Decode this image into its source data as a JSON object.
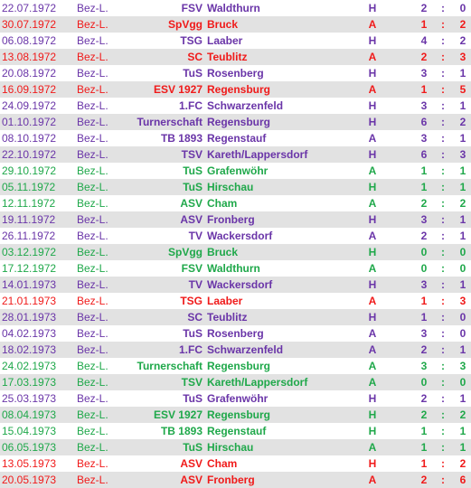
{
  "colors": {
    "draw": "#6a35a8",
    "loss": "#f01a1a",
    "win": "#1fa84a",
    "row_alt": "#e2e2e2"
  },
  "games": [
    {
      "date": "22.07.1972",
      "league": "Bez-L.",
      "club": "FSV",
      "opponent": "Waldthurn",
      "venue": "H",
      "home_goals": "2",
      "separator": ":",
      "away_goals": "0",
      "result": "draw"
    },
    {
      "date": "30.07.1972",
      "league": "Bez-L.",
      "club": "SpVgg",
      "opponent": "Bruck",
      "venue": "A",
      "home_goals": "1",
      "separator": ":",
      "away_goals": "2",
      "result": "loss"
    },
    {
      "date": "06.08.1972",
      "league": "Bez-L.",
      "club": "TSG",
      "opponent": "Laaber",
      "venue": "H",
      "home_goals": "4",
      "separator": ":",
      "away_goals": "2",
      "result": "draw"
    },
    {
      "date": "13.08.1972",
      "league": "Bez-L.",
      "club": "SC",
      "opponent": "Teublitz",
      "venue": "A",
      "home_goals": "2",
      "separator": ":",
      "away_goals": "3",
      "result": "loss"
    },
    {
      "date": "20.08.1972",
      "league": "Bez-L.",
      "club": "TuS",
      "opponent": "Rosenberg",
      "venue": "H",
      "home_goals": "3",
      "separator": ":",
      "away_goals": "1",
      "result": "draw"
    },
    {
      "date": "16.09.1972",
      "league": "Bez-L.",
      "club": "ESV 1927",
      "opponent": "Regensburg",
      "venue": "A",
      "home_goals": "1",
      "separator": ":",
      "away_goals": "5",
      "result": "loss"
    },
    {
      "date": "24.09.1972",
      "league": "Bez-L.",
      "club": "1.FC",
      "opponent": "Schwarzenfeld",
      "venue": "H",
      "home_goals": "3",
      "separator": ":",
      "away_goals": "1",
      "result": "draw"
    },
    {
      "date": "01.10.1972",
      "league": "Bez-L.",
      "club": "Turnerschaft",
      "opponent": "Regensburg",
      "venue": "H",
      "home_goals": "6",
      "separator": ":",
      "away_goals": "2",
      "result": "draw"
    },
    {
      "date": "08.10.1972",
      "league": "Bez-L.",
      "club": "TB 1893",
      "opponent": "Regenstauf",
      "venue": "A",
      "home_goals": "3",
      "separator": ":",
      "away_goals": "1",
      "result": "draw"
    },
    {
      "date": "22.10.1972",
      "league": "Bez-L.",
      "club": "TSV",
      "opponent": "Kareth/Lappersdorf",
      "venue": "H",
      "home_goals": "6",
      "separator": ":",
      "away_goals": "3",
      "result": "draw"
    },
    {
      "date": "29.10.1972",
      "league": "Bez-L.",
      "club": "TuS",
      "opponent": "Grafenwöhr",
      "venue": "A",
      "home_goals": "1",
      "separator": ":",
      "away_goals": "1",
      "result": "win"
    },
    {
      "date": "05.11.1972",
      "league": "Bez-L.",
      "club": "TuS",
      "opponent": "Hirschau",
      "venue": "H",
      "home_goals": "1",
      "separator": ":",
      "away_goals": "1",
      "result": "win"
    },
    {
      "date": "12.11.1972",
      "league": "Bez-L.",
      "club": "ASV",
      "opponent": "Cham",
      "venue": "A",
      "home_goals": "2",
      "separator": ":",
      "away_goals": "2",
      "result": "win"
    },
    {
      "date": "19.11.1972",
      "league": "Bez-L.",
      "club": "ASV",
      "opponent": "Fronberg",
      "venue": "H",
      "home_goals": "3",
      "separator": ":",
      "away_goals": "1",
      "result": "draw"
    },
    {
      "date": "26.11.1972",
      "league": "Bez-L.",
      "club": "TV",
      "opponent": "Wackersdorf",
      "venue": "A",
      "home_goals": "2",
      "separator": ":",
      "away_goals": "1",
      "result": "draw"
    },
    {
      "date": "03.12.1972",
      "league": "Bez-L.",
      "club": "SpVgg",
      "opponent": "Bruck",
      "venue": "H",
      "home_goals": "0",
      "separator": ":",
      "away_goals": "0",
      "result": "win"
    },
    {
      "date": "17.12.1972",
      "league": "Bez-L.",
      "club": "FSV",
      "opponent": "Waldthurn",
      "venue": "A",
      "home_goals": "0",
      "separator": ":",
      "away_goals": "0",
      "result": "win"
    },
    {
      "date": "14.01.1973",
      "league": "Bez-L.",
      "club": "TV",
      "opponent": "Wackersdorf",
      "venue": "H",
      "home_goals": "3",
      "separator": ":",
      "away_goals": "1",
      "result": "draw"
    },
    {
      "date": "21.01.1973",
      "league": "Bez-L.",
      "club": "TSG",
      "opponent": "Laaber",
      "venue": "A",
      "home_goals": "1",
      "separator": ":",
      "away_goals": "3",
      "result": "loss"
    },
    {
      "date": "28.01.1973",
      "league": "Bez-L.",
      "club": "SC",
      "opponent": "Teublitz",
      "venue": "H",
      "home_goals": "1",
      "separator": ":",
      "away_goals": "0",
      "result": "draw"
    },
    {
      "date": "04.02.1973",
      "league": "Bez-L.",
      "club": "TuS",
      "opponent": "Rosenberg",
      "venue": "A",
      "home_goals": "3",
      "separator": ":",
      "away_goals": "0",
      "result": "draw"
    },
    {
      "date": "18.02.1973",
      "league": "Bez-L.",
      "club": "1.FC",
      "opponent": "Schwarzenfeld",
      "venue": "A",
      "home_goals": "2",
      "separator": ":",
      "away_goals": "1",
      "result": "draw"
    },
    {
      "date": "24.02.1973",
      "league": "Bez-L.",
      "club": "Turnerschaft",
      "opponent": "Regensburg",
      "venue": "A",
      "home_goals": "3",
      "separator": ":",
      "away_goals": "3",
      "result": "win"
    },
    {
      "date": "17.03.1973",
      "league": "Bez-L.",
      "club": "TSV",
      "opponent": "Kareth/Lappersdorf",
      "venue": "A",
      "home_goals": "0",
      "separator": ":",
      "away_goals": "0",
      "result": "win"
    },
    {
      "date": "25.03.1973",
      "league": "Bez-L.",
      "club": "TuS",
      "opponent": "Grafenwöhr",
      "venue": "H",
      "home_goals": "2",
      "separator": ":",
      "away_goals": "1",
      "result": "draw"
    },
    {
      "date": "08.04.1973",
      "league": "Bez-L.",
      "club": "ESV 1927",
      "opponent": "Regensburg",
      "venue": "H",
      "home_goals": "2",
      "separator": ":",
      "away_goals": "2",
      "result": "win"
    },
    {
      "date": "15.04.1973",
      "league": "Bez-L.",
      "club": "TB 1893",
      "opponent": "Regenstauf",
      "venue": "H",
      "home_goals": "1",
      "separator": ":",
      "away_goals": "1",
      "result": "win"
    },
    {
      "date": "06.05.1973",
      "league": "Bez-L.",
      "club": "TuS",
      "opponent": "Hirschau",
      "venue": "A",
      "home_goals": "1",
      "separator": ":",
      "away_goals": "1",
      "result": "win"
    },
    {
      "date": "13.05.1973",
      "league": "Bez-L.",
      "club": "ASV",
      "opponent": "Cham",
      "venue": "H",
      "home_goals": "1",
      "separator": ":",
      "away_goals": "2",
      "result": "loss"
    },
    {
      "date": "20.05.1973",
      "league": "Bez-L.",
      "club": "ASV",
      "opponent": "Fronberg",
      "venue": "A",
      "home_goals": "2",
      "separator": ":",
      "away_goals": "6",
      "result": "loss"
    }
  ]
}
